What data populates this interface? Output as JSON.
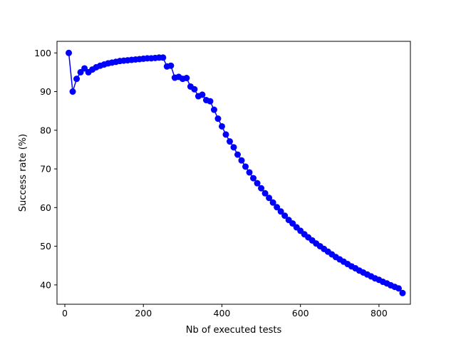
{
  "chart_data": {
    "type": "line",
    "title": "",
    "xlabel": "Nb of executed tests",
    "ylabel": "Success rate (%)",
    "xlim": [
      -20,
      880
    ],
    "ylim": [
      35,
      103
    ],
    "xticks": [
      0,
      200,
      400,
      600,
      800
    ],
    "yticks": [
      40,
      50,
      60,
      70,
      80,
      90,
      100
    ],
    "grid": false,
    "legend": "none",
    "series": [
      {
        "color": "#0000ff",
        "marker": "circle",
        "x": [
          10,
          20,
          30,
          40,
          50,
          60,
          70,
          80,
          90,
          100,
          110,
          120,
          130,
          140,
          150,
          160,
          170,
          180,
          190,
          200,
          210,
          220,
          230,
          240,
          250,
          260,
          270,
          280,
          290,
          300,
          310,
          320,
          330,
          340,
          350,
          360,
          370,
          380,
          390,
          400,
          410,
          420,
          430,
          440,
          450,
          460,
          470,
          480,
          490,
          500,
          510,
          520,
          530,
          540,
          550,
          560,
          570,
          580,
          590,
          600,
          610,
          620,
          630,
          640,
          650,
          660,
          670,
          680,
          690,
          700,
          710,
          720,
          730,
          740,
          750,
          760,
          770,
          780,
          790,
          800,
          810,
          820,
          830,
          840,
          850,
          860
        ],
        "y": [
          100,
          90,
          93.3,
          95,
          96,
          95,
          95.7,
          96.3,
          96.7,
          97,
          97.3,
          97.5,
          97.7,
          97.9,
          98,
          98.1,
          98.2,
          98.3,
          98.4,
          98.5,
          98.6,
          98.6,
          98.7,
          98.8,
          98.8,
          96.5,
          96.7,
          93.6,
          93.8,
          93.3,
          93.5,
          91.3,
          90.6,
          88.8,
          89.2,
          87.8,
          87.5,
          85.3,
          83,
          81,
          78.9,
          77.1,
          75.6,
          73.7,
          72.2,
          70.6,
          69.1,
          67.6,
          66.3,
          65,
          63.7,
          62.5,
          61.3,
          60.1,
          59,
          57.9,
          56.8,
          55.9,
          54.9,
          54,
          53.1,
          52.3,
          51.5,
          50.7,
          50,
          49.3,
          48.6,
          47.9,
          47.2,
          46.6,
          46,
          45.4,
          44.8,
          44.3,
          43.7,
          43.2,
          42.7,
          42.2,
          41.7,
          41.3,
          40.8,
          40.4,
          39.9,
          39.5,
          39.1,
          37.9
        ]
      }
    ]
  }
}
